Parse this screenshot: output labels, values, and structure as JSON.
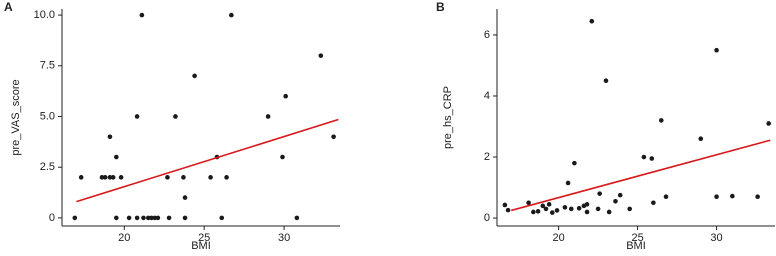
{
  "chart_data": [
    {
      "type": "scatter",
      "panel": "A",
      "x_label": "BMI",
      "y_label": "pre_VAS_score",
      "xlim": [
        16.1,
        33.5
      ],
      "ylim": [
        -0.4,
        10.3
      ],
      "xticks": [
        20,
        25,
        30
      ],
      "yticks": [
        0,
        {
          "value": 2.5,
          "label": "2.5"
        },
        {
          "value": 5,
          "label": "5.0"
        },
        {
          "value": 7.5,
          "label": "7.5"
        },
        {
          "value": 10,
          "label": "10.0"
        }
      ],
      "color": "#1a1a1a",
      "x": [
        16.9,
        17.3,
        18.6,
        18.8,
        19.1,
        19.1,
        19.3,
        19.5,
        19.5,
        19.8,
        20.3,
        20.8,
        20.8,
        21.1,
        21.2,
        21.5,
        21.7,
        21.9,
        22.1,
        22.7,
        22.8,
        23.2,
        23.7,
        23.8,
        23.8,
        24.4,
        25.4,
        25.8,
        26.1,
        26.4,
        26.7,
        29.0,
        29.9,
        30.1,
        30.8,
        32.3,
        33.1
      ],
      "y": [
        0,
        2,
        2,
        2,
        4,
        2,
        2,
        3,
        0,
        2,
        0,
        5,
        0,
        10,
        0,
        0,
        0,
        0,
        0,
        2,
        0,
        5,
        2,
        0,
        1,
        7,
        2,
        3,
        0,
        2,
        10,
        5,
        3,
        6,
        0,
        8,
        4
      ],
      "trend": {
        "color": "#d7191c",
        "x": [
          17,
          33.4
        ],
        "y": [
          0.8,
          4.85
        ]
      }
    },
    {
      "type": "scatter",
      "panel": "B",
      "x_label": "BMI",
      "y_label": "pre_hs_CRP",
      "xlim": [
        16.1,
        33.7
      ],
      "ylim": [
        -0.26,
        6.85
      ],
      "xticks": [
        20,
        25,
        30
      ],
      "yticks": [
        0,
        2,
        4,
        6
      ],
      "color": "#1a1a1a",
      "x": [
        16.6,
        16.8,
        18.1,
        18.4,
        18.7,
        19.0,
        19.2,
        19.4,
        19.6,
        19.9,
        20.4,
        20.6,
        20.8,
        21.0,
        21.3,
        21.6,
        21.8,
        21.8,
        22.1,
        22.5,
        22.6,
        23.0,
        23.2,
        23.6,
        23.9,
        24.5,
        25.4,
        25.9,
        26.0,
        26.5,
        26.8,
        29.0,
        30.0,
        30.0,
        31.0,
        32.6,
        33.3
      ],
      "y": [
        0.43,
        0.26,
        0.5,
        0.2,
        0.22,
        0.4,
        0.3,
        0.45,
        0.18,
        0.25,
        0.35,
        1.15,
        0.3,
        1.8,
        0.32,
        0.4,
        0.2,
        0.45,
        6.45,
        0.3,
        0.8,
        4.5,
        0.2,
        0.55,
        0.75,
        0.3,
        2.0,
        1.95,
        0.5,
        3.2,
        0.7,
        2.6,
        5.5,
        0.7,
        0.72,
        0.7,
        3.1
      ],
      "trend": {
        "color": "#d7191c",
        "x": [
          17,
          33.4
        ],
        "y": [
          0.25,
          2.55
        ]
      }
    }
  ]
}
